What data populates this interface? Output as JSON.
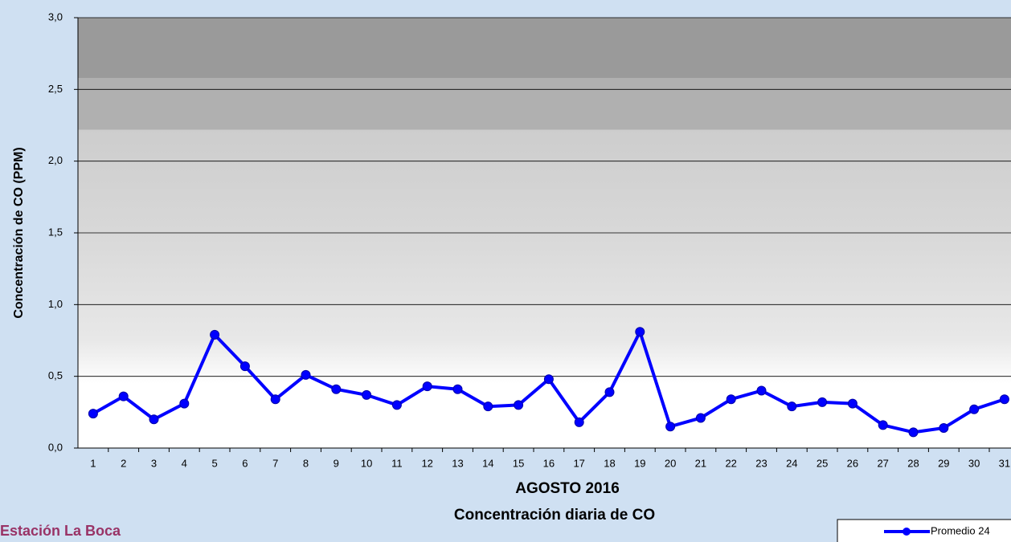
{
  "chart_data": {
    "type": "line",
    "title": "AGOSTO 2016",
    "subtitle": "Concentración diaria de CO",
    "y_label": "Concentración de CO (PPM)",
    "station": "Estación La Boca",
    "categories": [
      "1",
      "2",
      "3",
      "4",
      "5",
      "6",
      "7",
      "8",
      "9",
      "10",
      "11",
      "12",
      "13",
      "14",
      "15",
      "16",
      "17",
      "18",
      "19",
      "20",
      "21",
      "22",
      "23",
      "24",
      "25",
      "26",
      "27",
      "28",
      "29",
      "30",
      "31"
    ],
    "series": [
      {
        "name": "Promedio 24",
        "color": "#0000ff",
        "values": [
          0.24,
          0.36,
          0.2,
          0.31,
          0.79,
          0.57,
          0.34,
          0.51,
          0.41,
          0.37,
          0.3,
          0.43,
          0.41,
          0.29,
          0.3,
          0.48,
          0.18,
          0.39,
          0.81,
          0.15,
          0.21,
          0.34,
          0.4,
          0.29,
          0.32,
          0.31,
          0.16,
          0.11,
          0.14,
          0.27,
          0.34
        ]
      }
    ],
    "ylim": [
      0,
      3
    ],
    "yticks": [
      {
        "value": 0,
        "label": "0,0"
      },
      {
        "value": 0.5,
        "label": "0,5"
      },
      {
        "value": 1,
        "label": "1,0"
      },
      {
        "value": 1.5,
        "label": "1,5"
      },
      {
        "value": 2,
        "label": "2,0"
      },
      {
        "value": 2.5,
        "label": "2,5"
      },
      {
        "value": 3,
        "label": "3,0"
      }
    ],
    "grid": true
  }
}
